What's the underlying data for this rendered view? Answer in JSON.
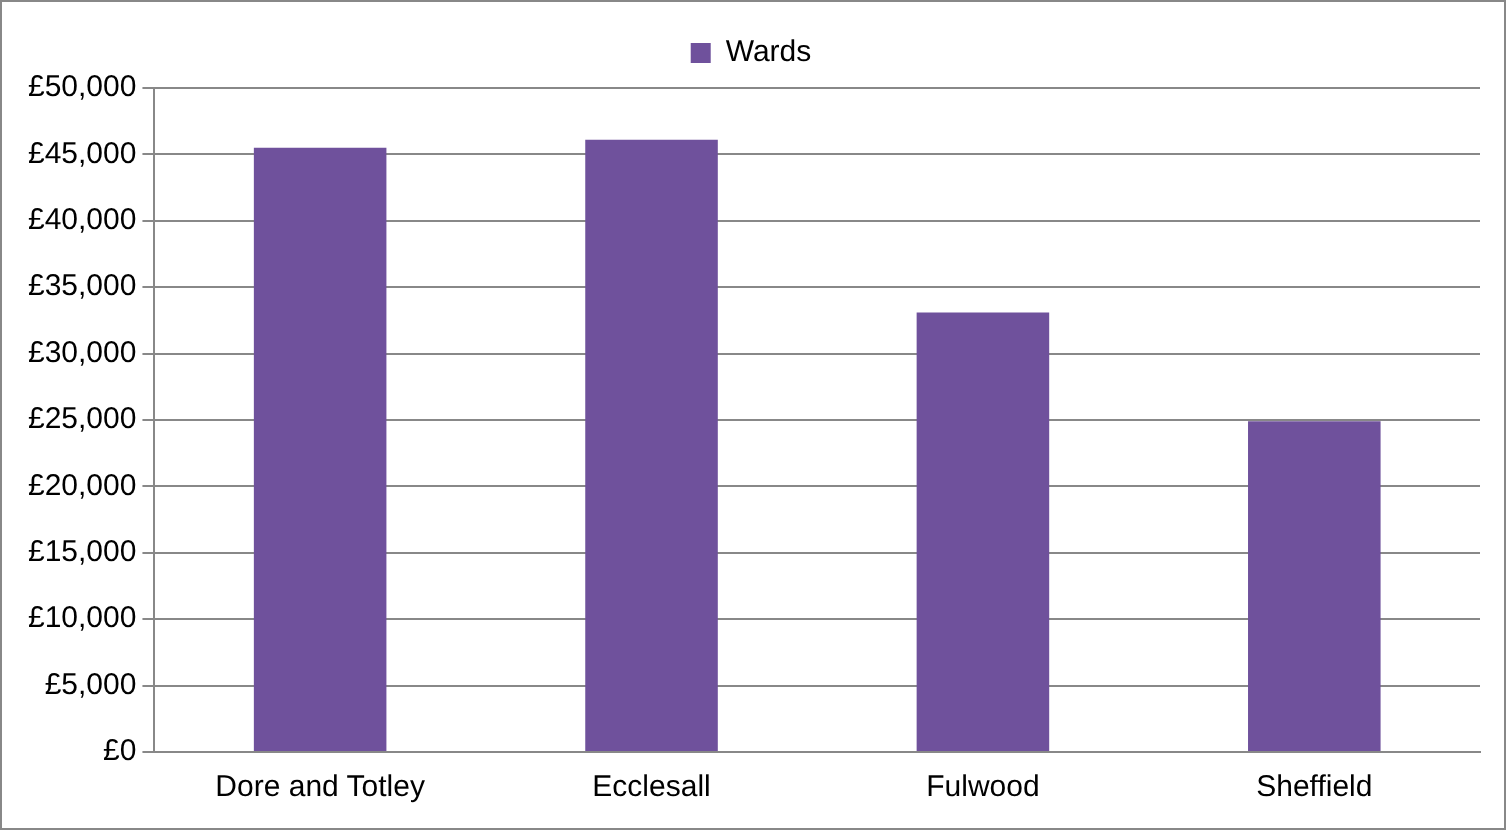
{
  "chart_data": {
    "type": "bar",
    "categories": [
      "Dore and Totley",
      "Ecclesall",
      "Fulwood",
      "Sheffield"
    ],
    "series": [
      {
        "name": "Wards",
        "color": "#6f519c",
        "values": [
          45500,
          46100,
          33100,
          24900
        ]
      }
    ],
    "ylim": [
      0,
      50000
    ],
    "yticks": [
      {
        "value": 0,
        "label": "£0"
      },
      {
        "value": 5000,
        "label": "£5,000"
      },
      {
        "value": 10000,
        "label": "£10,000"
      },
      {
        "value": 15000,
        "label": "£15,000"
      },
      {
        "value": 20000,
        "label": "£20,000"
      },
      {
        "value": 25000,
        "label": "£25,000"
      },
      {
        "value": 30000,
        "label": "£30,000"
      },
      {
        "value": 35000,
        "label": "£35,000"
      },
      {
        "value": 40000,
        "label": "£40,000"
      },
      {
        "value": 45000,
        "label": "£45,000"
      },
      {
        "value": 50000,
        "label": "£50,000"
      }
    ],
    "grid": "y",
    "legend": "top"
  }
}
